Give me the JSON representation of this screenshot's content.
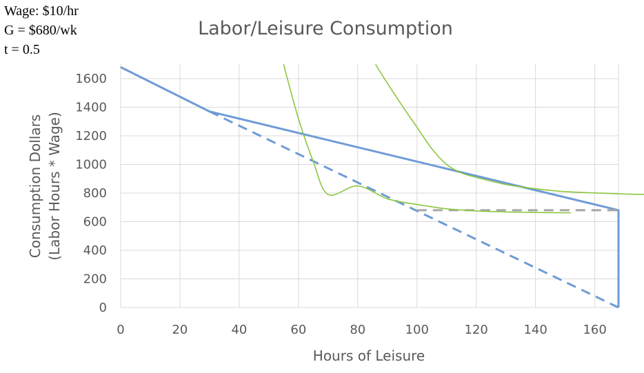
{
  "annotations": {
    "wage": "Wage: $10/hr",
    "grant": "G = $680/wk",
    "tax": "t = 0.5"
  },
  "chart_data": {
    "type": "line",
    "title": "Labor/Leisure Consumption",
    "xlabel": "Hours of Leisure",
    "ylabel_line1": "Consumption Dollars",
    "ylabel_line2": "(Labor Hours * Wage)",
    "xlim": [
      0,
      168
    ],
    "ylim": [
      0,
      1700
    ],
    "x_ticks": [
      0,
      20,
      40,
      60,
      80,
      100,
      120,
      140,
      160
    ],
    "y_ticks": [
      0,
      200,
      400,
      600,
      800,
      1000,
      1200,
      1400,
      1600
    ],
    "grid": "vertical and horizontal",
    "legend": "none",
    "series": [
      {
        "style": "solid",
        "color": "#6e9bd6",
        "x": [
          0,
          30,
          168,
          168
        ],
        "y": [
          1680,
          1370,
          680,
          0
        ]
      },
      {
        "style": "dashed",
        "color": "#6e9bd6",
        "x": [
          30,
          168
        ],
        "y": [
          1370,
          0
        ]
      },
      {
        "style": "dashed",
        "color": "#a6a6a6",
        "x": [
          100,
          168
        ],
        "y": [
          680,
          680
        ]
      },
      {
        "style": "solid",
        "color": "#8cc63f",
        "x": [
          55,
          56,
          60,
          65,
          70,
          80,
          90,
          100,
          110,
          120,
          130,
          140,
          152
        ],
        "y": [
          1700,
          1620,
          1320,
          1020,
          790,
          850,
          760,
          720,
          690,
          675,
          668,
          664,
          662
        ]
      },
      {
        "style": "solid",
        "color": "#8cc63f",
        "x": [
          86,
          89,
          95,
          100,
          105,
          110,
          115,
          120,
          130,
          140,
          150,
          168,
          178
        ],
        "y": [
          1700,
          1600,
          1410,
          1260,
          1110,
          1000,
          940,
          910,
          860,
          830,
          810,
          795,
          790
        ]
      }
    ]
  }
}
